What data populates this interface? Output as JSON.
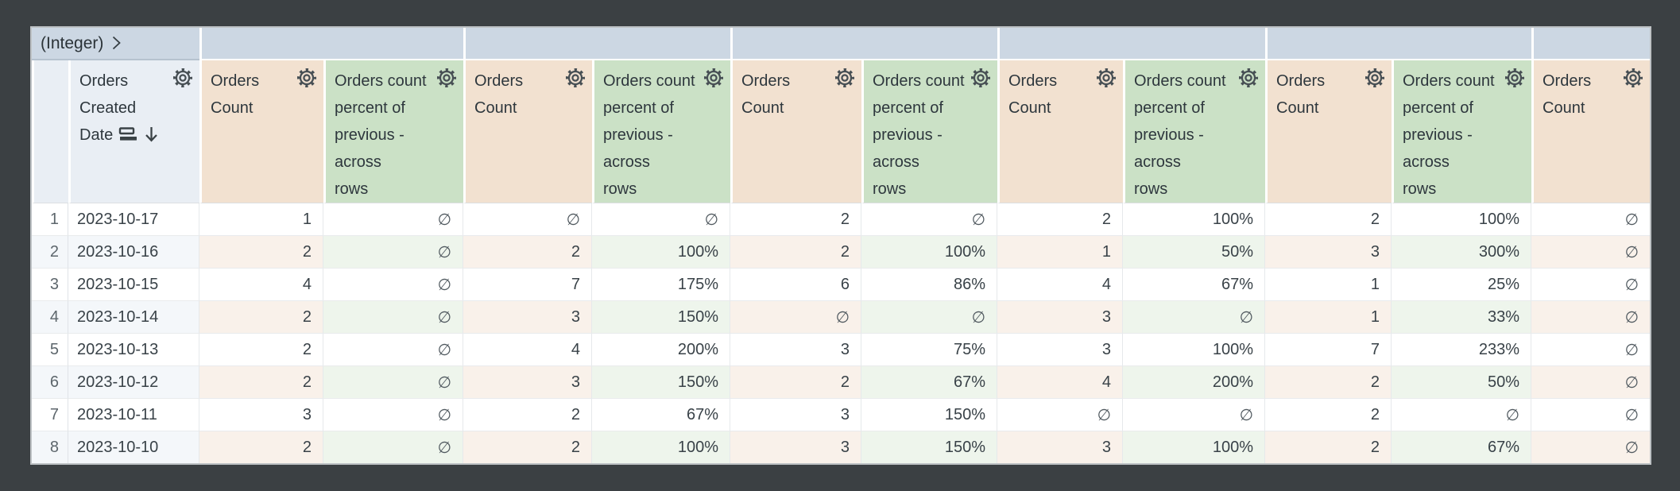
{
  "window": {
    "surround_color": "#3b4043",
    "table_border_color": "#bdc1c4"
  },
  "pivot": {
    "label": "(Integer)",
    "value_cells_blank": true,
    "background": "#ccd7e3"
  },
  "null_symbol": "∅",
  "columns": [
    {
      "id": "row-index",
      "label": "",
      "label_lines": [
        ""
      ],
      "type": "index"
    },
    {
      "id": "orders-created-date",
      "label": "Orders Created Date",
      "label_lines": [
        "Orders",
        "Created",
        "Date"
      ],
      "type": "dimension",
      "sorted": "descending"
    },
    {
      "id": "orders-count-1",
      "label": "Orders Count",
      "label_lines": [
        "Orders",
        "Count"
      ],
      "type": "count"
    },
    {
      "id": "orders-count-percent-previous-1",
      "label": "Orders count percent of previous - across rows",
      "label_lines": [
        "Orders count",
        "percent of",
        "previous -",
        "across",
        "rows"
      ],
      "type": "percent"
    },
    {
      "id": "orders-count-2",
      "label": "Orders Count",
      "label_lines": [
        "Orders",
        "Count"
      ],
      "type": "count"
    },
    {
      "id": "orders-count-percent-previous-2",
      "label": "Orders count percent of previous - across rows",
      "label_lines": [
        "Orders count",
        "percent of",
        "previous -",
        "across",
        "rows"
      ],
      "type": "percent"
    },
    {
      "id": "orders-count-3",
      "label": "Orders Count",
      "label_lines": [
        "Orders",
        "Count"
      ],
      "type": "count"
    },
    {
      "id": "orders-count-percent-previous-3",
      "label": "Orders count percent of previous - across rows",
      "label_lines": [
        "Orders count",
        "percent of",
        "previous -",
        "across",
        "rows"
      ],
      "type": "percent"
    },
    {
      "id": "orders-count-4",
      "label": "Orders Count",
      "label_lines": [
        "Orders",
        "Count"
      ],
      "type": "count"
    },
    {
      "id": "orders-count-percent-previous-4",
      "label": "Orders count percent of previous - across rows",
      "label_lines": [
        "Orders count",
        "percent of",
        "previous -",
        "across",
        "rows"
      ],
      "type": "percent"
    },
    {
      "id": "orders-count-5",
      "label": "Orders Count",
      "label_lines": [
        "Orders",
        "Count"
      ],
      "type": "count"
    },
    {
      "id": "orders-count-percent-previous-5",
      "label": "Orders count percent of previous - across rows",
      "label_lines": [
        "Orders count",
        "percent of",
        "previous -",
        "across",
        "rows"
      ],
      "type": "percent"
    },
    {
      "id": "orders-count-6",
      "label": "Orders Count",
      "label_lines": [
        "Orders",
        "Count"
      ],
      "type": "count"
    }
  ],
  "rows": [
    {
      "index": "1",
      "date": "2023-10-17",
      "values": [
        "1",
        "∅",
        "∅",
        "∅",
        "2",
        "∅",
        "2",
        "100%",
        "2",
        "100%",
        "∅"
      ]
    },
    {
      "index": "2",
      "date": "2023-10-16",
      "values": [
        "2",
        "∅",
        "2",
        "100%",
        "2",
        "100%",
        "1",
        "50%",
        "3",
        "300%",
        "∅"
      ]
    },
    {
      "index": "3",
      "date": "2023-10-15",
      "values": [
        "4",
        "∅",
        "7",
        "175%",
        "6",
        "86%",
        "4",
        "67%",
        "1",
        "25%",
        "∅"
      ]
    },
    {
      "index": "4",
      "date": "2023-10-14",
      "values": [
        "2",
        "∅",
        "3",
        "150%",
        "∅",
        "∅",
        "3",
        "∅",
        "1",
        "33%",
        "∅"
      ]
    },
    {
      "index": "5",
      "date": "2023-10-13",
      "values": [
        "2",
        "∅",
        "4",
        "200%",
        "3",
        "75%",
        "3",
        "100%",
        "7",
        "233%",
        "∅"
      ]
    },
    {
      "index": "6",
      "date": "2023-10-12",
      "values": [
        "2",
        "∅",
        "3",
        "150%",
        "2",
        "67%",
        "4",
        "200%",
        "2",
        "50%",
        "∅"
      ]
    },
    {
      "index": "7",
      "date": "2023-10-11",
      "values": [
        "3",
        "∅",
        "2",
        "67%",
        "3",
        "150%",
        "∅",
        "∅",
        "2",
        "∅",
        "∅"
      ]
    },
    {
      "index": "8",
      "date": "2023-10-10",
      "values": [
        "2",
        "∅",
        "2",
        "100%",
        "3",
        "150%",
        "3",
        "100%",
        "2",
        "67%",
        "∅"
      ]
    }
  ],
  "colors": {
    "pivot_header_bg": "#ccd7e3",
    "dimension_header_bg": "#e9eef4",
    "count_header_bg": "#f2e1d0",
    "percent_header_bg": "#cbe1c6",
    "even_row_dimension_bg": "#f4f7fa",
    "even_row_count_bg": "#f9f1ea",
    "even_row_percent_bg": "#eef5ec",
    "text": "#394248"
  }
}
